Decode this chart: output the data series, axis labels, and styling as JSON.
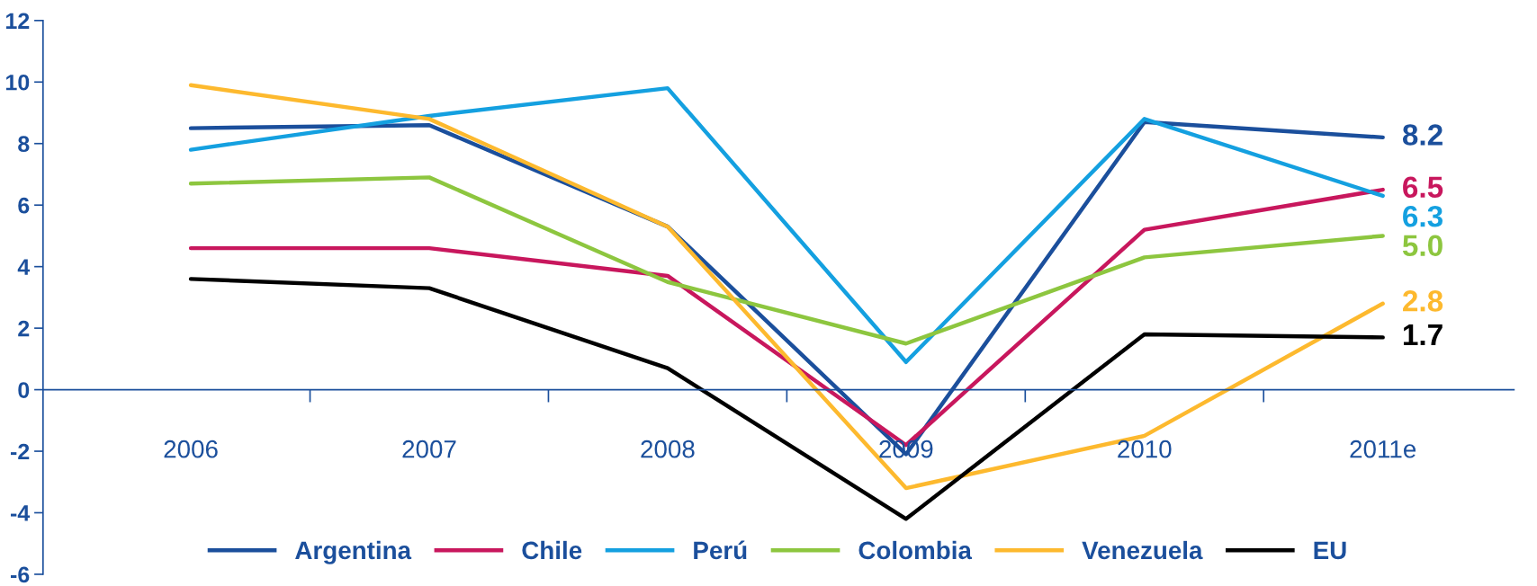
{
  "chart_data": {
    "type": "line",
    "categories": [
      "2006",
      "2007",
      "2008",
      "2009",
      "2010",
      "2011e"
    ],
    "ylim": [
      -6,
      12
    ],
    "yticks": [
      -6,
      -4,
      -2,
      0,
      2,
      4,
      6,
      8,
      10,
      12
    ],
    "grid": false,
    "legend": "bottom",
    "marker": "none",
    "line_style": "solid",
    "series": [
      {
        "name": "Argentina",
        "color": "#1b4f9c",
        "values": [
          8.5,
          8.6,
          5.3,
          -2.1,
          8.7,
          8.2
        ],
        "value_labels": [
          null,
          null,
          null,
          null,
          null,
          "8.2"
        ]
      },
      {
        "name": "Chile",
        "color": "#c8175d",
        "values": [
          4.6,
          4.6,
          3.7,
          -1.8,
          5.2,
          6.5
        ],
        "value_labels": [
          null,
          null,
          null,
          null,
          null,
          "6.5"
        ]
      },
      {
        "name": "Perú",
        "color": "#14a0e0",
        "values": [
          7.8,
          8.9,
          9.8,
          0.9,
          8.8,
          6.3
        ],
        "value_labels": [
          null,
          null,
          null,
          null,
          null,
          "6.3"
        ]
      },
      {
        "name": "Colombia",
        "color": "#8dc63f",
        "values": [
          6.7,
          6.9,
          3.5,
          1.5,
          4.3,
          5.0
        ],
        "value_labels": [
          null,
          null,
          null,
          null,
          null,
          "5.0"
        ]
      },
      {
        "name": "Venezuela",
        "color": "#fdb92e",
        "values": [
          9.9,
          8.8,
          5.3,
          -3.2,
          -1.5,
          2.8
        ],
        "value_labels": [
          null,
          null,
          null,
          null,
          null,
          "2.8"
        ]
      },
      {
        "name": "EU",
        "color": "#000000",
        "values": [
          3.6,
          3.3,
          0.7,
          -4.2,
          1.8,
          1.7
        ],
        "value_labels": [
          null,
          null,
          null,
          null,
          null,
          "1.7"
        ]
      }
    ]
  }
}
